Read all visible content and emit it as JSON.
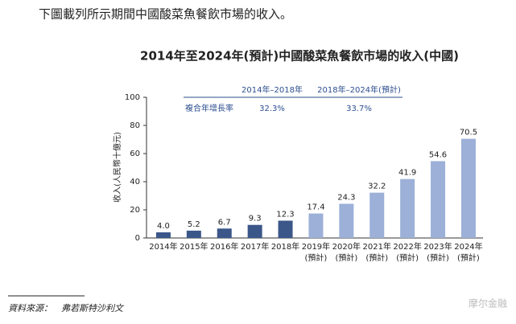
{
  "intro": "下圖載列所示期間中國酸菜魚餐飲市場的收入。",
  "chart_data": {
    "type": "bar",
    "title": "2014年至2024年(預計)中國酸菜魚餐飲市場的收入(中國)",
    "y_label": "收入(人民幣十億元)",
    "categories": [
      "2014年",
      "2015年",
      "2016年",
      "2017年",
      "2018年",
      "2019年",
      "2020年",
      "2021年",
      "2022年",
      "2023年",
      "2024年"
    ],
    "category_sublabels": [
      null,
      null,
      null,
      null,
      null,
      "(預計)",
      "(預計)",
      "(預計)",
      "(預計)",
      "(預計)",
      "(預計)"
    ],
    "values": [
      4.0,
      5.2,
      6.7,
      9.3,
      12.3,
      17.4,
      24.3,
      32.2,
      41.9,
      54.6,
      70.5
    ],
    "value_labels": [
      "4.0",
      "5.2",
      "6.7",
      "9.3",
      "12.3",
      "17.4",
      "24.3",
      "32.2",
      "41.9",
      "54.6",
      "70.5"
    ],
    "colors": [
      "#3b5689",
      "#3b5689",
      "#3b5689",
      "#3b5689",
      "#3b5689",
      "#9cb0d8",
      "#9cb0d8",
      "#9cb0d8",
      "#9cb0d8",
      "#9cb0d8",
      "#9cb0d8"
    ],
    "ylim": [
      0,
      100
    ],
    "yticks": [
      0,
      20,
      40,
      60,
      80,
      100
    ],
    "grid": false,
    "cagr_table": {
      "headers": [
        "2014年–2018年",
        "2018年–2024年(預計)"
      ],
      "row_label": "複合年增長率",
      "cells": [
        "32.3%",
        "33.7%"
      ]
    }
  },
  "source": "資料來源：　弗若斯特沙利文",
  "watermark": "摩尔金融"
}
